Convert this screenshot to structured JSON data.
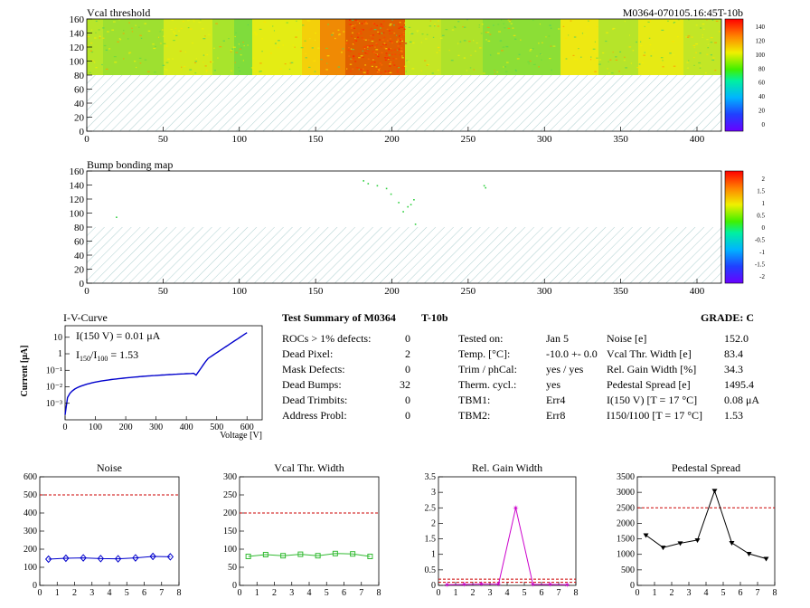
{
  "header": {
    "module_id": "M0364-070105.16:45T-10b"
  },
  "maps": [
    {
      "id": "vcal",
      "title": "Vcal threshold",
      "x_ticks": [
        0,
        50,
        100,
        150,
        200,
        250,
        300,
        350,
        400
      ],
      "y_ticks": [
        0,
        20,
        40,
        60,
        80,
        100,
        120,
        140,
        160
      ],
      "scale_ticks": [
        "140",
        "120",
        "100",
        "80",
        "60",
        "40",
        "20",
        "0"
      ]
    },
    {
      "id": "bump",
      "title": "Bump bonding map",
      "x_ticks": [
        0,
        50,
        100,
        150,
        200,
        250,
        300,
        350,
        400
      ],
      "y_ticks": [
        0,
        20,
        40,
        60,
        80,
        100,
        120,
        140,
        160
      ],
      "scale_ticks": [
        "2",
        "1.5",
        "1",
        "0.5",
        "0",
        "-0.5",
        "-1",
        "-1.5",
        "-2"
      ]
    }
  ],
  "iv": {
    "title": "I-V-Curve",
    "ylabel": "Current [μA]",
    "xlabel": "Voltage [V]",
    "note1": "I(150 V) = 0.01 μA",
    "note2_pre": "I",
    "note2_sub1": "150",
    "note2_mid": "/I",
    "note2_sub2": "100",
    "note2_post": " =  1.53",
    "x_ticks": [
      "0",
      "100",
      "200",
      "300",
      "400",
      "500",
      "600"
    ],
    "y_ticks": [
      "10",
      "1",
      "10⁻¹",
      "10⁻²",
      "10⁻³"
    ]
  },
  "summary": {
    "title": "Test Summary of M0364",
    "subtitle": "T-10b",
    "grade": "GRADE:  C",
    "col1": [
      [
        "ROCs > 1% defects:",
        "0"
      ],
      [
        "Dead Pixel:",
        "2"
      ],
      [
        "Mask Defects:",
        "0"
      ],
      [
        "Dead Bumps:",
        "32"
      ],
      [
        "Dead Trimbits:",
        "0"
      ],
      [
        "Address Probl:",
        "0"
      ]
    ],
    "col2": [
      [
        "Tested on:",
        "Jan 5"
      ],
      [
        "Temp. [°C]:",
        "-10.0 +- 0.0"
      ],
      [
        "Trim / phCal:",
        "yes / yes"
      ],
      [
        "Therm. cycl.:",
        "yes"
      ],
      [
        "TBM1:",
        "Err4"
      ],
      [
        "TBM2:",
        "Err8"
      ]
    ],
    "col3": [
      [
        "Noise [e]",
        "152.0"
      ],
      [
        "Vcal Thr. Width [e]",
        "83.4"
      ],
      [
        "Rel. Gain Width [%]",
        "34.3"
      ],
      [
        "Pedestal Spread [e]",
        "1495.4"
      ],
      [
        "I(150 V) [T = 17 °C]",
        "0.08 μA"
      ],
      [
        "I150/I100   [T = 17 °C]",
        "1.53"
      ]
    ]
  },
  "chart_data": [
    {
      "type": "line",
      "title": "Noise",
      "x": [
        0.5,
        1.5,
        2.5,
        3.5,
        4.5,
        5.5,
        6.5,
        7.5
      ],
      "values": [
        145,
        150,
        152,
        148,
        147,
        152,
        160,
        158
      ],
      "threshold": 500,
      "xlim": [
        0,
        8
      ],
      "ylim": [
        0,
        600
      ],
      "y_ticks": [
        0,
        100,
        200,
        300,
        400,
        500,
        600
      ],
      "color": "#0000cc",
      "marker": "diamond"
    },
    {
      "type": "line",
      "title": "Vcal Thr. Width",
      "x": [
        0.5,
        1.5,
        2.5,
        3.5,
        4.5,
        5.5,
        6.5,
        7.5
      ],
      "values": [
        80,
        85,
        82,
        86,
        82,
        88,
        87,
        80
      ],
      "threshold": 200,
      "xlim": [
        0,
        8
      ],
      "ylim": [
        0,
        300
      ],
      "y_ticks": [
        0,
        50,
        100,
        150,
        200,
        250,
        300
      ],
      "color": "#33bb33",
      "marker": "square"
    },
    {
      "type": "line",
      "title": "Rel. Gain Width",
      "x": [
        0.5,
        1.5,
        2.5,
        3.5,
        4.5,
        5.5,
        6.5,
        7.5
      ],
      "values": [
        0.02,
        0.03,
        0.04,
        0.04,
        2.5,
        0.03,
        0.03,
        0.02
      ],
      "threshold": 0.2,
      "threshold2": 0.1,
      "xlim": [
        0,
        8
      ],
      "ylim": [
        0,
        3.5
      ],
      "y_ticks": [
        0,
        0.5,
        1,
        1.5,
        2,
        2.5,
        3,
        3.5
      ],
      "color": "#cc00cc",
      "marker": "star"
    },
    {
      "type": "line",
      "title": "Pedestal Spread",
      "x": [
        0.5,
        1.5,
        2.5,
        3.5,
        4.5,
        5.5,
        6.5,
        7.5
      ],
      "values": [
        1620,
        1220,
        1360,
        1460,
        3050,
        1370,
        1020,
        860
      ],
      "threshold": 2500,
      "xlim": [
        0,
        8
      ],
      "ylim": [
        0,
        3500
      ],
      "y_ticks": [
        0,
        500,
        1000,
        1500,
        2000,
        2500,
        3000,
        3500
      ],
      "color": "#000000",
      "marker": "triangle"
    }
  ]
}
